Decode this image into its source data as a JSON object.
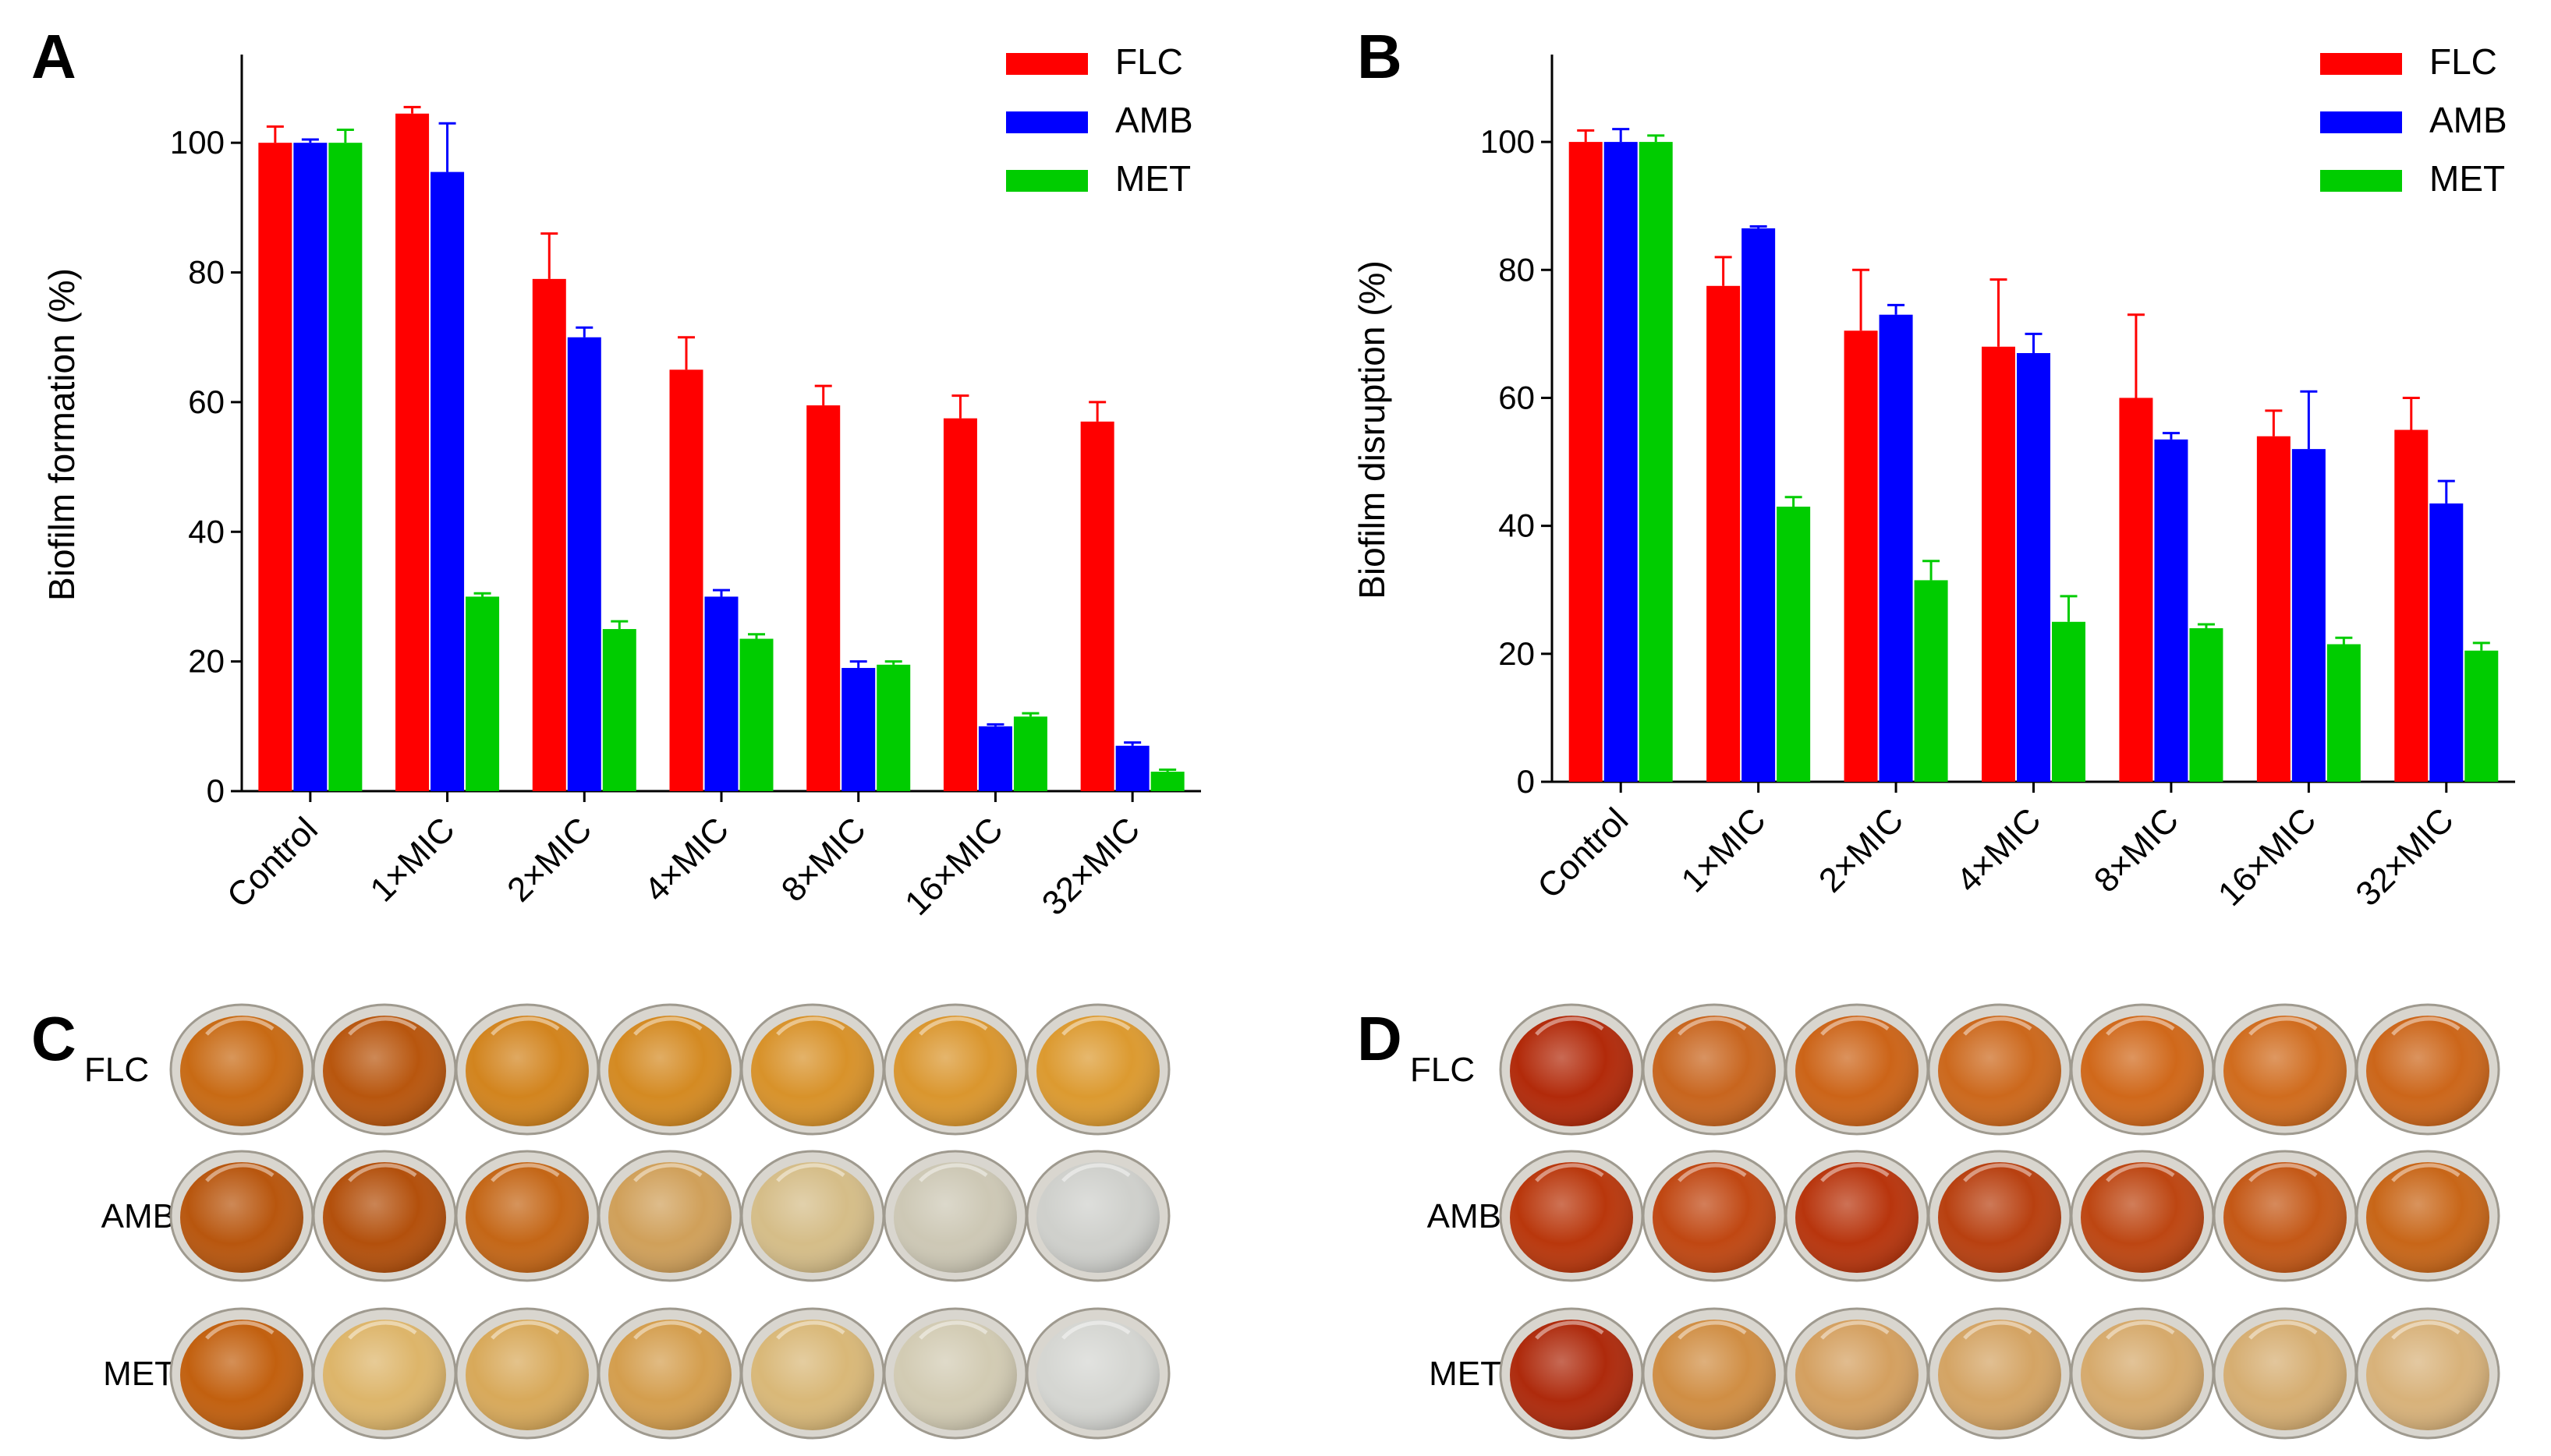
{
  "colors": {
    "FLC": "#ff0000",
    "AMB": "#0000ff",
    "MET": "#00cc00",
    "axis": "#000000"
  },
  "chart_data": [
    {
      "id": "A",
      "panel_label": "A",
      "type": "bar",
      "ylabel": "Biofilm formation (%)",
      "ylim": [
        0,
        110
      ],
      "yticks": [
        0,
        20,
        40,
        60,
        80,
        100
      ],
      "grid": false,
      "legend_position": "top-right",
      "categories": [
        "Control",
        "1×MIC",
        "2×MIC",
        "4×MIC",
        "8×MIC",
        "16×MIC",
        "32×MIC"
      ],
      "series": [
        {
          "name": "FLC",
          "color": "#ff0000",
          "values": [
            100,
            104.5,
            79,
            65,
            59.5,
            57.5,
            57
          ],
          "errors": [
            2.5,
            1,
            7,
            5,
            3,
            3.5,
            3
          ]
        },
        {
          "name": "AMB",
          "color": "#0000ff",
          "values": [
            100,
            95.5,
            70,
            30,
            19,
            10,
            7
          ],
          "errors": [
            0.5,
            7.5,
            1.5,
            1,
            1,
            0.3,
            0.5
          ]
        },
        {
          "name": "MET",
          "color": "#00cc00",
          "values": [
            100,
            30,
            25,
            23.5,
            19.5,
            11.5,
            3
          ],
          "errors": [
            2,
            0.5,
            1.2,
            0.7,
            0.5,
            0.5,
            0.3
          ]
        }
      ]
    },
    {
      "id": "B",
      "panel_label": "B",
      "type": "bar",
      "ylabel": "Biofilm disruption (%)",
      "ylim": [
        0,
        110
      ],
      "yticks": [
        0,
        20,
        40,
        60,
        80,
        100
      ],
      "grid": false,
      "legend_position": "top-right",
      "categories": [
        "Control",
        "1×MIC",
        "2×MIC",
        "4×MIC",
        "8×MIC",
        "16×MIC",
        "32×MIC"
      ],
      "series": [
        {
          "name": "FLC",
          "color": "#ff0000",
          "values": [
            100,
            77.5,
            70.5,
            68,
            60,
            54,
            55
          ],
          "errors": [
            1.8,
            4.5,
            9.5,
            10.5,
            13,
            4,
            5
          ]
        },
        {
          "name": "AMB",
          "color": "#0000ff",
          "values": [
            100,
            86.5,
            73,
            67,
            53.5,
            52,
            43.5
          ],
          "errors": [
            2,
            0.3,
            1.5,
            3,
            1,
            9,
            3.5
          ]
        },
        {
          "name": "MET",
          "color": "#00cc00",
          "values": [
            100,
            43,
            31.5,
            25,
            24,
            21.5,
            20.5
          ],
          "errors": [
            1,
            1.5,
            3,
            4,
            0.6,
            1,
            1.2
          ]
        }
      ]
    }
  ],
  "photo_panels": [
    {
      "id": "C",
      "panel_label": "C",
      "rows": [
        {
          "label": "FLC",
          "wells": [
            "#c86a14",
            "#b8560e",
            "#d2841e",
            "#d48a22",
            "#d8922a",
            "#da962e",
            "#dc9a30"
          ]
        },
        {
          "label": "AMB",
          "wells": [
            "#b8560e",
            "#b3500c",
            "#c46616",
            "#d0a05a",
            "#d5bd88",
            "#cdc8b5",
            "#cfd0cc"
          ]
        },
        {
          "label": "MET",
          "wells": [
            "#c2600f",
            "#ddb56a",
            "#d8a95a",
            "#d49e4e",
            "#d9b878",
            "#d2cbb3",
            "#d5d6d2"
          ]
        }
      ]
    },
    {
      "id": "D",
      "panel_label": "D",
      "rows": [
        {
          "label": "FLC",
          "wells": [
            "#b22a0a",
            "#c8651e",
            "#cc6418",
            "#cc681c",
            "#d0681a",
            "#d06c1e",
            "#cc661a"
          ]
        },
        {
          "label": "AMB",
          "wells": [
            "#b9370c",
            "#c04712",
            "#b8350d",
            "#b84010",
            "#bd4612",
            "#c45816",
            "#c86618"
          ]
        },
        {
          "label": "MET",
          "wells": [
            "#ae2a0c",
            "#d08e44",
            "#d4a060",
            "#d4a464",
            "#d6aa6c",
            "#d6ae72",
            "#d8b27a"
          ]
        }
      ]
    }
  ]
}
